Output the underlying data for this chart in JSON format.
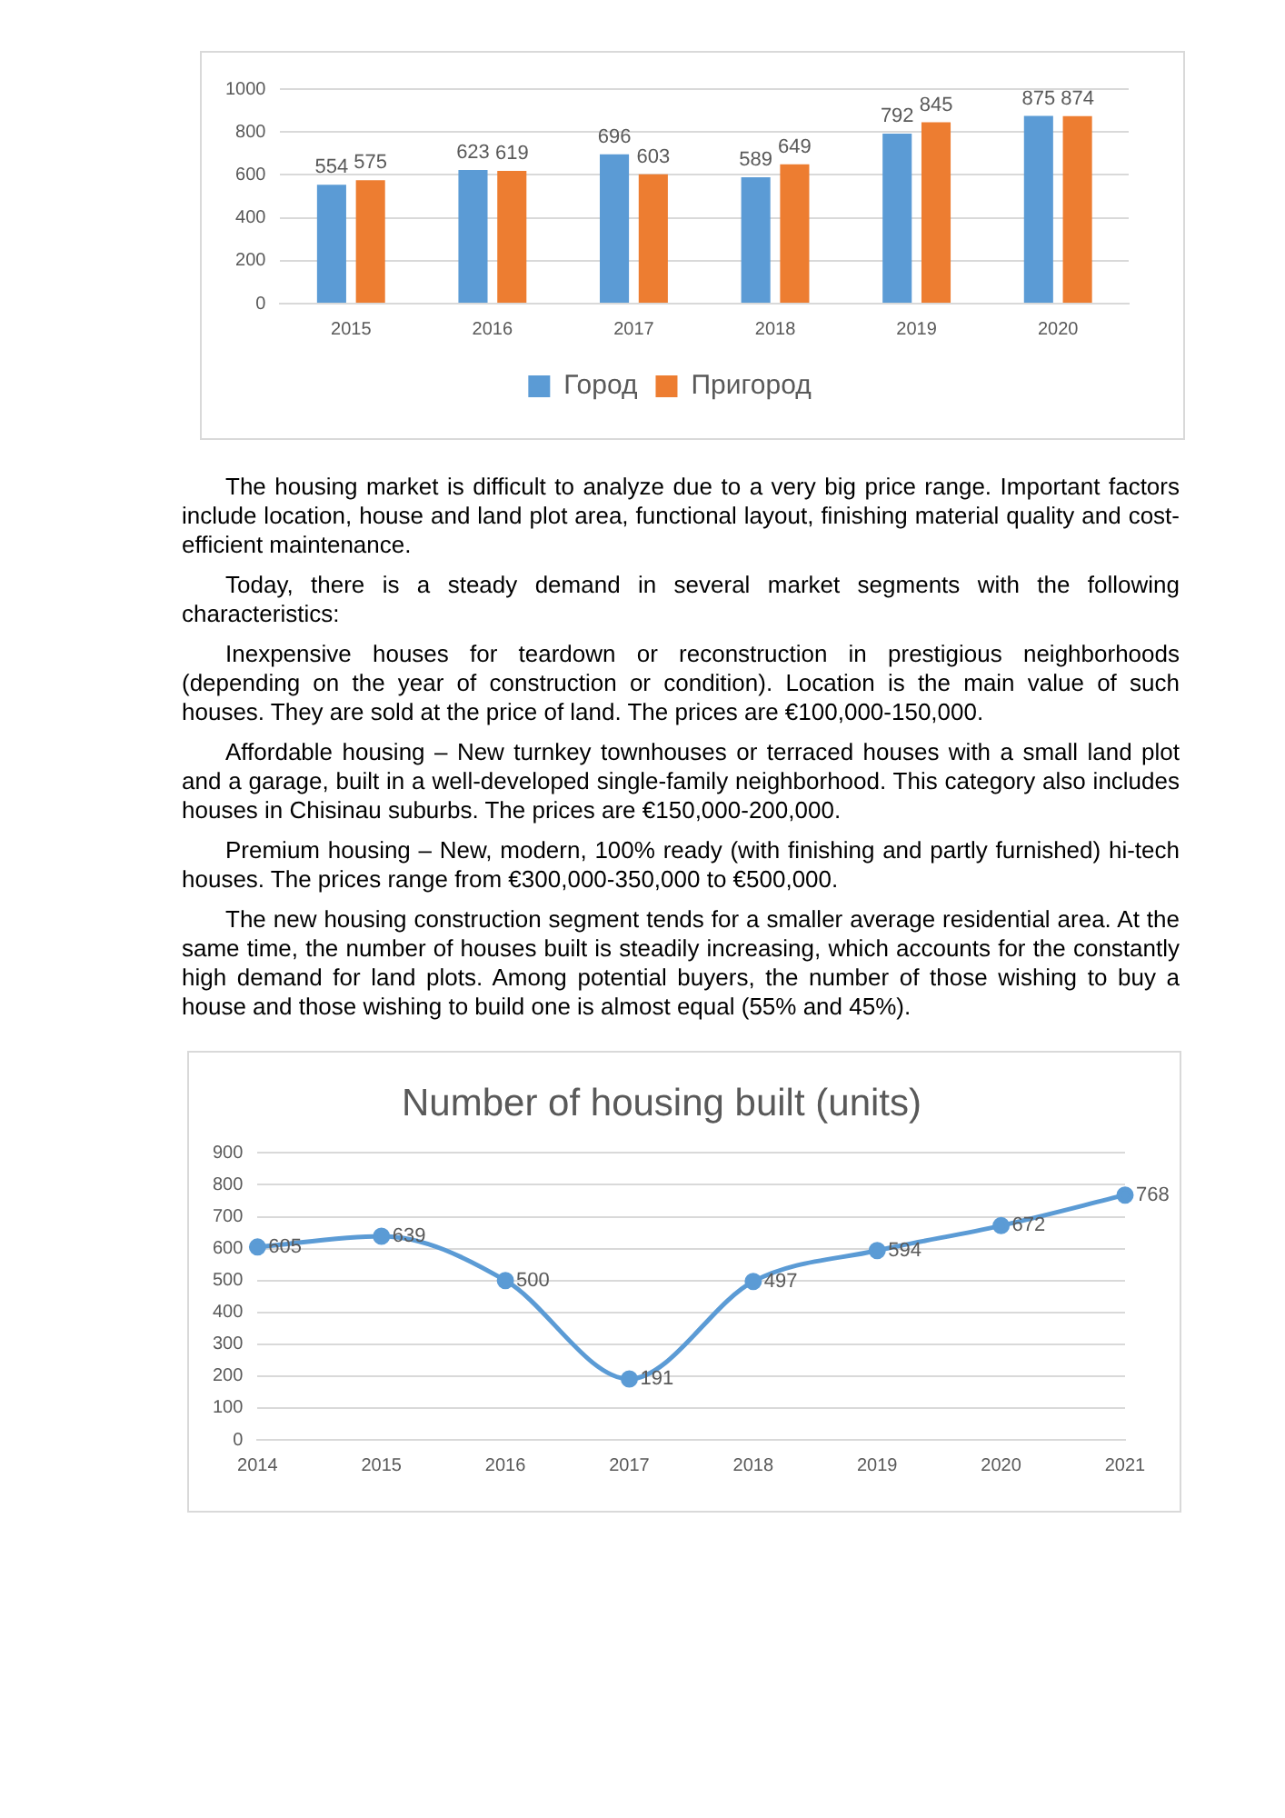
{
  "chart_data": [
    {
      "type": "bar",
      "categories": [
        "2015",
        "2016",
        "2017",
        "2018",
        "2019",
        "2020"
      ],
      "series": [
        {
          "name": "Город",
          "color": "#5b9bd5",
          "values": [
            554,
            623,
            696,
            589,
            792,
            875
          ]
        },
        {
          "name": "Пригород",
          "color": "#ed7d31",
          "values": [
            575,
            619,
            603,
            649,
            845,
            874
          ]
        }
      ],
      "ylim": [
        0,
        1000
      ],
      "yticks": [
        0,
        200,
        400,
        600,
        800,
        1000
      ],
      "grid": "y",
      "legend": "bottom",
      "data_labels": true
    },
    {
      "type": "other",
      "annotations": [
        "The housing market is difficult to analyze due to a very big price range. Important factors include location, house and land plot area, functional layout, finishing material quality and cost-efficient maintenance.",
        "Today, there is a steady demand in several market segments with the following characteristics:",
        "Inexpensive houses for teardown or reconstruction in prestigious neighborhoods (depending on the year of construction or condition). Location is the main value of such houses. They are sold at the price of land. The prices are €100,000-150,000.",
        "Affordable housing – New turnkey townhouses or terraced houses with a small land plot and a garage, built in a well-developed single-family neighborhood. This category also includes houses in Chisinau suburbs. The prices are €150,000-200,000.",
        "Premium housing – New, modern, 100% ready (with finishing and partly furnished) hi-tech houses. The prices range from €300,000-350,000 to €500,000.",
        "The new housing construction segment tends for a smaller average residential area. At the same time, the number of houses built is steadily increasing, which accounts for the constantly high demand for land plots. Among potential buyers, the number of those wishing to buy a house and those wishing to build one is almost equal (55% and 45%)."
      ]
    },
    {
      "type": "line",
      "title": "Number of housing built (units)",
      "categories": [
        "2014",
        "2015",
        "2016",
        "2017",
        "2018",
        "2019",
        "2020",
        "2021"
      ],
      "values": [
        605,
        639,
        500,
        191,
        497,
        594,
        672,
        768
      ],
      "color": "#5b9bd5",
      "ylim": [
        0,
        900
      ],
      "yticks": [
        0,
        100,
        200,
        300,
        400,
        500,
        600,
        700,
        800,
        900
      ],
      "grid": "y",
      "data_labels": true,
      "marker": "circle"
    }
  ]
}
